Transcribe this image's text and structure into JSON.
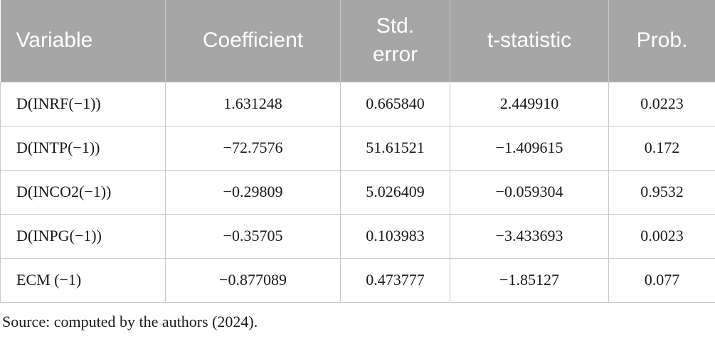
{
  "table": {
    "header": [
      "Variable",
      "Coefficient",
      "Std. error",
      "t-statistic",
      "Prob."
    ],
    "rows": [
      [
        "D(INRF(−1))",
        "1.631248",
        "0.665840",
        "2.449910",
        "0.0223"
      ],
      [
        "D(INTP(−1))",
        "−72.7576",
        "51.61521",
        "−1.409615",
        "0.172"
      ],
      [
        "D(INCO2(−1))",
        "−0.29809",
        "5.026409",
        "−0.059304",
        "0.9532"
      ],
      [
        "D(INPG(−1))",
        "−0.35705",
        "0.103983",
        "−3.433693",
        "0.0023"
      ],
      [
        "ECM (−1)",
        "−0.877089",
        "0.473777",
        "−1.85127",
        "0.077"
      ]
    ]
  },
  "footer": "Source: computed by the authors (2024)."
}
